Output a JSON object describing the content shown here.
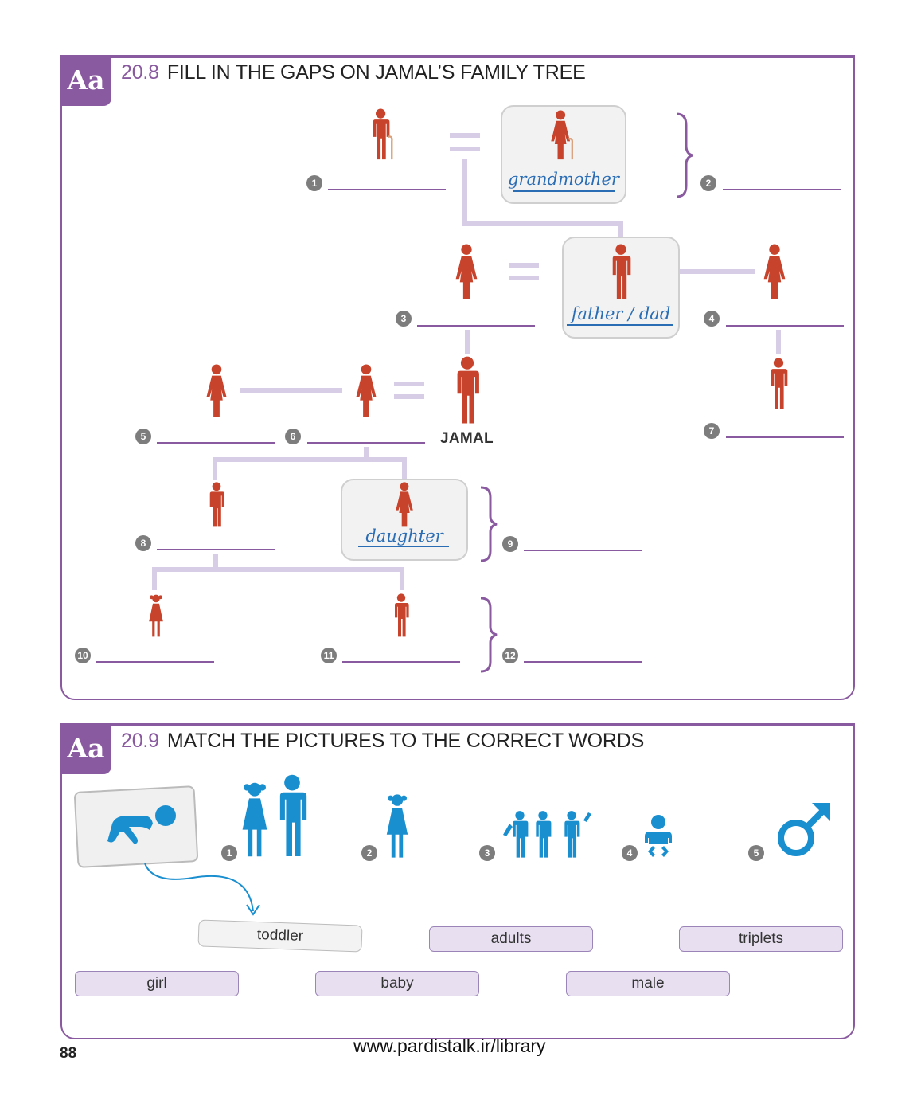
{
  "exercise1": {
    "badge": "Aa",
    "number": "20.8",
    "title": "FILL IN THE GAPS ON JAMAL’S FAMILY TREE",
    "given": {
      "grandmother": "grandmother",
      "father": "father / dad",
      "daughter": "daughter"
    },
    "jamal_label": "JAMAL",
    "gap_numbers": [
      "1",
      "2",
      "3",
      "4",
      "5",
      "6",
      "7",
      "8",
      "9",
      "10",
      "11",
      "12"
    ]
  },
  "exercise2": {
    "badge": "Aa",
    "number": "20.9",
    "title": "MATCH THE PICTURES TO THE CORRECT WORDS",
    "picture_numbers": [
      "1",
      "2",
      "3",
      "4",
      "5"
    ],
    "example_word": "toddler",
    "words": [
      "adults",
      "triplets",
      "girl",
      "baby",
      "male"
    ]
  },
  "colors": {
    "accent": "#8a5aa0",
    "figure_red": "#c8432b",
    "figure_blue": "#1a8fd0",
    "connector": "#d7cde6",
    "handwriting": "#2a6db5"
  },
  "footer": {
    "page_number": "88",
    "url": "www.pardistalk.ir/library"
  }
}
